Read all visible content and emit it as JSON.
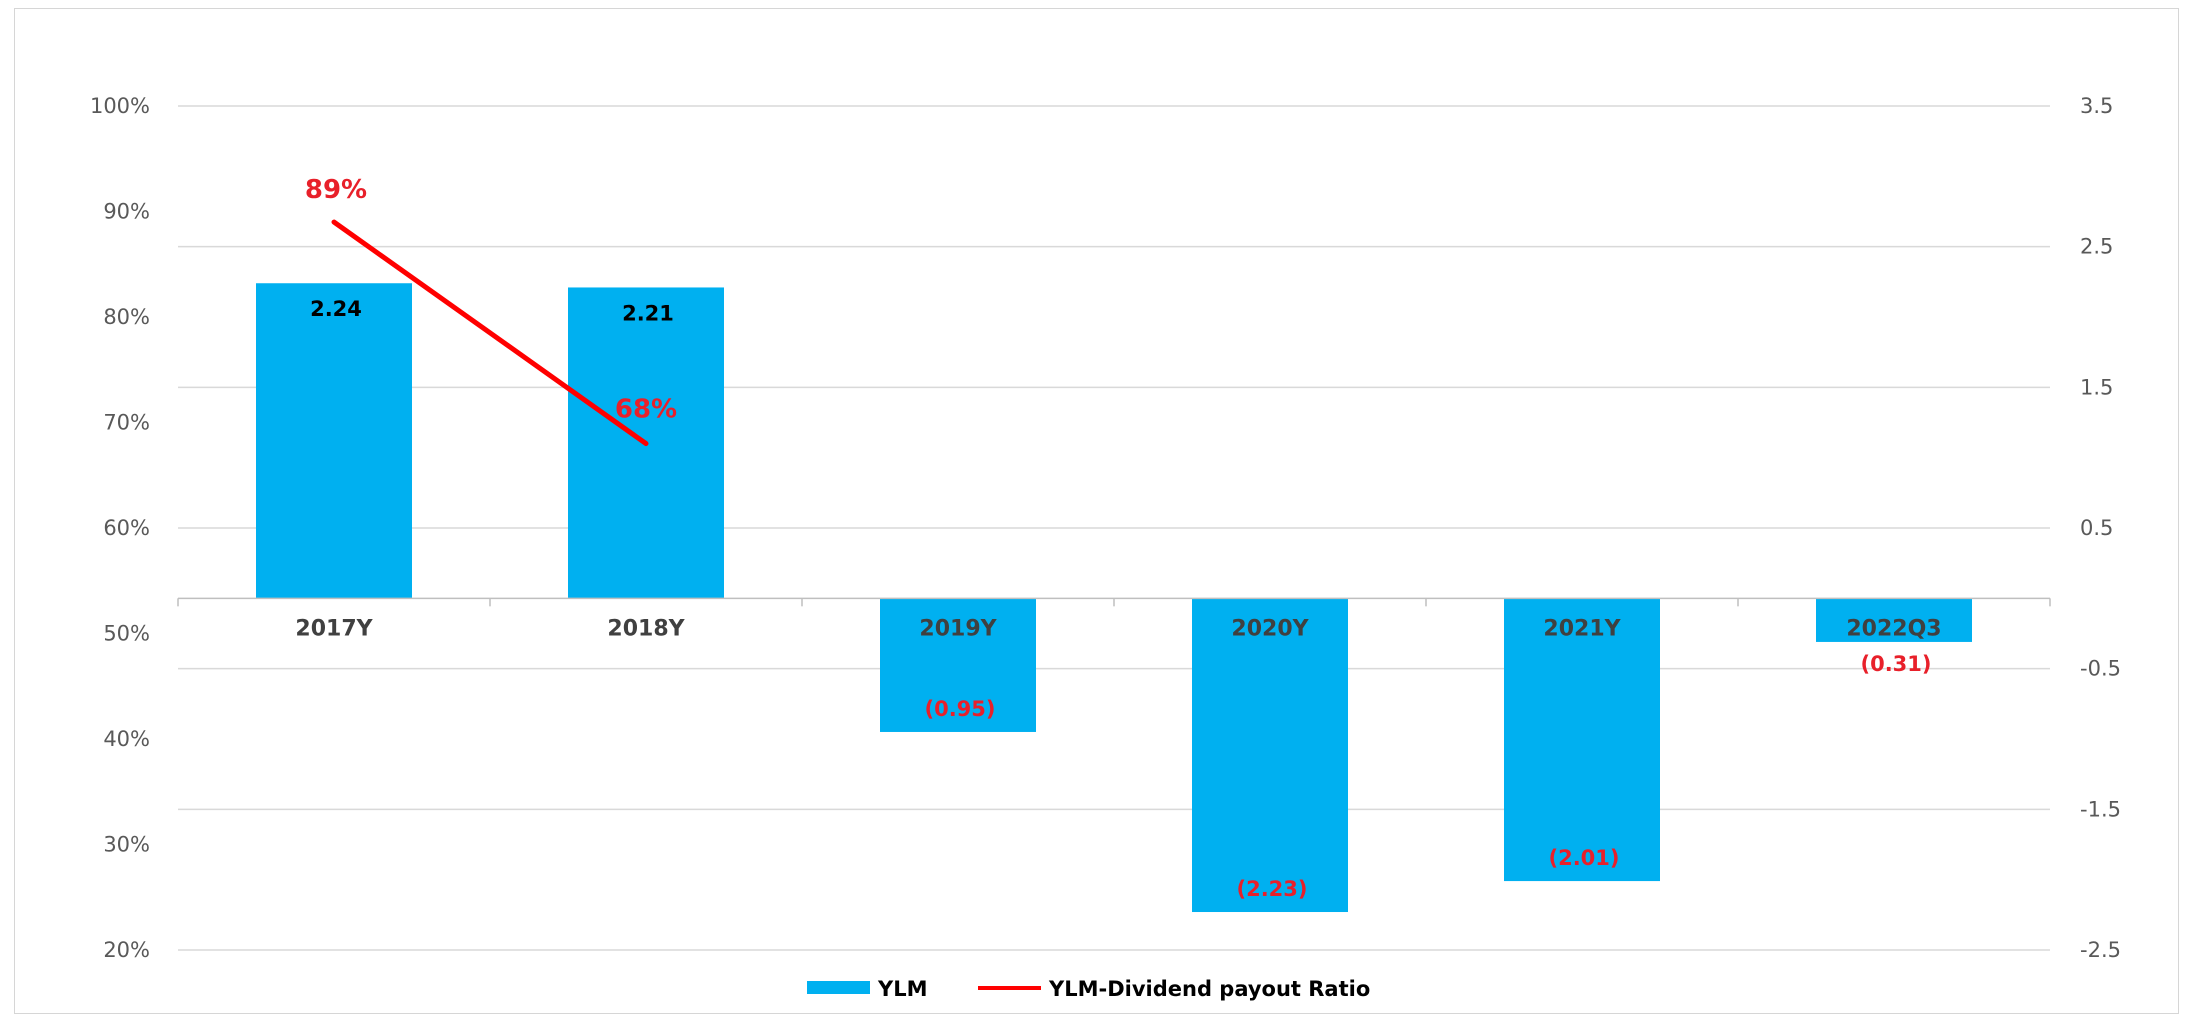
{
  "chart_data": {
    "type": "bar",
    "categories": [
      "2017Y",
      "2018Y",
      "2019Y",
      "2020Y",
      "2021Y",
      "2022Q3"
    ],
    "series": [
      {
        "name": "YLM",
        "type": "bar",
        "axis": "right",
        "color": "#00b0f0",
        "values": [
          2.24,
          2.21,
          -0.95,
          -2.23,
          -2.01,
          -0.31
        ],
        "labels": [
          "2.24",
          "2.21",
          "(0.95)",
          "(2.23)",
          "(2.01)",
          "(0.31)"
        ]
      },
      {
        "name": "YLM-Dividend payout Ratio",
        "type": "line",
        "axis": "left",
        "color": "#ff0000",
        "values": [
          0.89,
          0.68,
          null,
          null,
          null,
          null
        ],
        "labels": [
          "89%",
          "68%"
        ]
      }
    ],
    "y_left": {
      "range": [
        0.2,
        1.0
      ],
      "ticks": [
        "100%",
        "90%",
        "80%",
        "70%",
        "60%",
        "50%",
        "40%",
        "30%",
        "20%"
      ]
    },
    "y_right": {
      "range": [
        -2.5,
        3.5
      ],
      "ticks": [
        "3.5",
        "2.5",
        "1.5",
        "0.5",
        "-0.5",
        "-1.5",
        "-2.5"
      ]
    },
    "grid": true,
    "legend": "bottom",
    "colors": {
      "positive_label": "#000000",
      "negative_label": "#e8202a",
      "line_label": "#e8202a"
    }
  }
}
